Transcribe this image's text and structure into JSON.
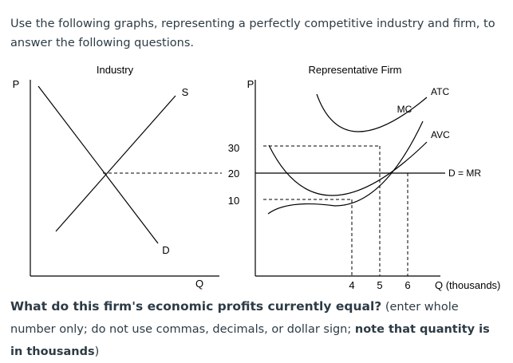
{
  "intro_text": "Use the following graphs, representing a perfectly competitive industry and firm, to answer the following questions.",
  "industry": {
    "title": "Industry",
    "y_axis": "P",
    "x_axis": "Q",
    "supply_label": "S",
    "demand_label": "D"
  },
  "firm": {
    "title": "Representative Firm",
    "y_axis": "P",
    "x_axis": "Q (thousands)",
    "price_ticks": [
      "30",
      "20",
      "10"
    ],
    "quantity_ticks": [
      "4",
      "5",
      "6"
    ],
    "curves": {
      "mc": "MC",
      "atc": "ATC",
      "avc": "AVC",
      "dmr": "D = MR"
    }
  },
  "question": {
    "main": "What do this firm's economic profits currently equal?",
    "instruction": " (enter whole number only; do not use commas, decimals, or dollar sign; ",
    "note": "note that quantity is in thousands",
    "tail": ")"
  }
}
